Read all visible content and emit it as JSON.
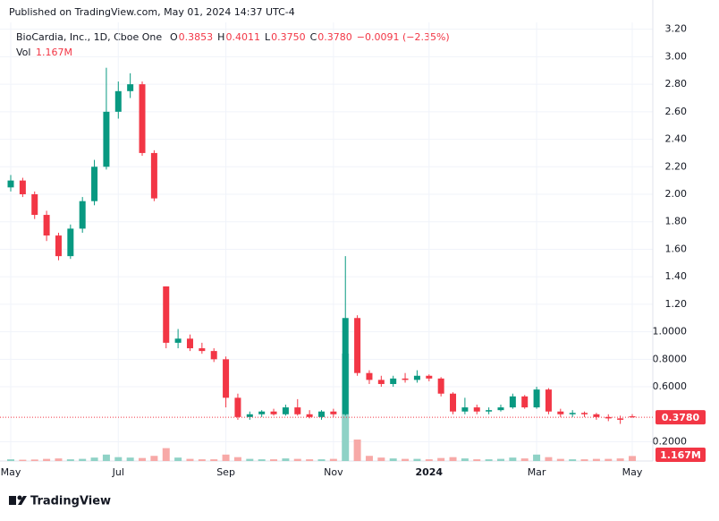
{
  "header": {
    "published": "Published on TradingView.com, May 01, 2024 14:37 UTC-4",
    "brand": "TradingView"
  },
  "chart_data": {
    "type": "candlestick",
    "title": "BioCardia, Inc., 1D, Cboe One",
    "legend": [
      {
        "label": "O",
        "value": "0.3853"
      },
      {
        "label": "H",
        "value": "0.4011"
      },
      {
        "label": "L",
        "value": "0.3750"
      },
      {
        "label": "C",
        "value": "0.3780"
      }
    ],
    "change": "−0.0091 (−2.35%)",
    "volume_title": "Vol",
    "volume_label": "1.167M",
    "up_color": "#089981",
    "down_color": "#f23645",
    "volume_up_color": "#8fd2c6",
    "volume_down_color": "#f7a9a7",
    "grid": true,
    "categories": [
      "May",
      null,
      null,
      null,
      null,
      null,
      null,
      null,
      null,
      "Jul",
      null,
      null,
      null,
      null,
      null,
      null,
      null,
      null,
      "Sep",
      null,
      null,
      null,
      null,
      null,
      null,
      null,
      null,
      "Nov",
      null,
      null,
      null,
      null,
      null,
      null,
      null,
      "2024",
      null,
      null,
      null,
      null,
      null,
      null,
      null,
      null,
      "Mar",
      null,
      null,
      null,
      null,
      null,
      null,
      null,
      "May"
    ],
    "open": [
      2.05,
      2.1,
      2.0,
      1.85,
      1.7,
      1.55,
      1.75,
      1.95,
      2.2,
      2.6,
      2.75,
      2.8,
      2.3,
      1.33,
      0.92,
      0.95,
      0.88,
      0.86,
      0.8,
      0.52,
      0.38,
      0.4,
      0.42,
      0.4,
      0.45,
      0.4,
      0.38,
      0.42,
      0.4,
      1.1,
      0.7,
      0.65,
      0.62,
      0.66,
      0.65,
      0.68,
      0.66,
      0.55,
      0.42,
      0.45,
      0.42,
      0.43,
      0.45,
      0.53,
      0.45,
      0.58,
      0.42,
      0.4,
      0.41,
      0.4,
      0.38,
      0.37,
      0.3853
    ],
    "high": [
      2.14,
      2.12,
      2.02,
      1.88,
      1.72,
      1.78,
      1.98,
      2.25,
      2.92,
      2.82,
      2.88,
      2.82,
      2.32,
      1.33,
      1.02,
      0.98,
      0.92,
      0.88,
      0.82,
      0.55,
      0.42,
      0.43,
      0.44,
      0.47,
      0.51,
      0.43,
      0.43,
      0.44,
      1.55,
      1.12,
      0.72,
      0.68,
      0.68,
      0.7,
      0.72,
      0.69,
      0.67,
      0.56,
      0.52,
      0.47,
      0.45,
      0.47,
      0.55,
      0.54,
      0.6,
      0.59,
      0.44,
      0.43,
      0.42,
      0.41,
      0.4,
      0.39,
      0.4011
    ],
    "low": [
      2.02,
      1.98,
      1.82,
      1.66,
      1.52,
      1.53,
      1.72,
      1.92,
      2.18,
      2.55,
      2.7,
      2.28,
      1.95,
      0.88,
      0.88,
      0.86,
      0.84,
      0.78,
      0.45,
      0.36,
      0.36,
      0.38,
      0.39,
      0.39,
      0.39,
      0.37,
      0.36,
      0.38,
      0.39,
      0.68,
      0.62,
      0.6,
      0.6,
      0.63,
      0.63,
      0.64,
      0.53,
      0.4,
      0.4,
      0.4,
      0.4,
      0.42,
      0.44,
      0.44,
      0.44,
      0.4,
      0.38,
      0.38,
      0.38,
      0.36,
      0.35,
      0.33,
      0.375
    ],
    "close": [
      2.1,
      2.0,
      1.85,
      1.7,
      1.55,
      1.75,
      1.95,
      2.2,
      2.6,
      2.75,
      2.8,
      2.3,
      1.97,
      0.92,
      0.95,
      0.88,
      0.86,
      0.8,
      0.52,
      0.38,
      0.4,
      0.42,
      0.4,
      0.45,
      0.4,
      0.38,
      0.42,
      0.4,
      1.1,
      0.7,
      0.65,
      0.62,
      0.66,
      0.65,
      0.68,
      0.66,
      0.55,
      0.42,
      0.45,
      0.42,
      0.43,
      0.45,
      0.53,
      0.45,
      0.58,
      0.42,
      0.4,
      0.41,
      0.4,
      0.38,
      0.37,
      0.36,
      0.378
    ],
    "volume": [
      400000,
      300000,
      350000,
      500000,
      600000,
      400000,
      500000,
      800000,
      1500000,
      900000,
      800000,
      700000,
      1200000,
      3000000,
      800000,
      500000,
      400000,
      400000,
      1500000,
      900000,
      500000,
      400000,
      400000,
      600000,
      500000,
      400000,
      400000,
      500000,
      25000000,
      5000000,
      1200000,
      800000,
      600000,
      500000,
      500000,
      400000,
      700000,
      900000,
      600000,
      400000,
      400000,
      500000,
      800000,
      600000,
      1500000,
      900000,
      500000,
      400000,
      400000,
      500000,
      500000,
      600000,
      1167000
    ],
    "ylim": [
      0.06,
      3.25
    ],
    "yticks": [
      {
        "value": 0.2,
        "label": "0.2000"
      },
      {
        "value": 0.6,
        "label": "0.6000"
      },
      {
        "value": 0.8,
        "label": "0.8000"
      },
      {
        "value": 1.0,
        "label": "1.0000"
      },
      {
        "value": 1.2,
        "label": "1.20"
      },
      {
        "value": 1.4,
        "label": "1.40"
      },
      {
        "value": 1.6,
        "label": "1.60"
      },
      {
        "value": 1.8,
        "label": "1.80"
      },
      {
        "value": 2.0,
        "label": "2.00"
      },
      {
        "value": 2.2,
        "label": "2.20"
      },
      {
        "value": 2.4,
        "label": "2.40"
      },
      {
        "value": 2.6,
        "label": "2.60"
      },
      {
        "value": 2.8,
        "label": "2.80"
      },
      {
        "value": 3.0,
        "label": "3.00"
      },
      {
        "value": 3.2,
        "label": "3.20"
      }
    ],
    "last_price": {
      "value": 0.378,
      "label": "0.3780"
    }
  }
}
